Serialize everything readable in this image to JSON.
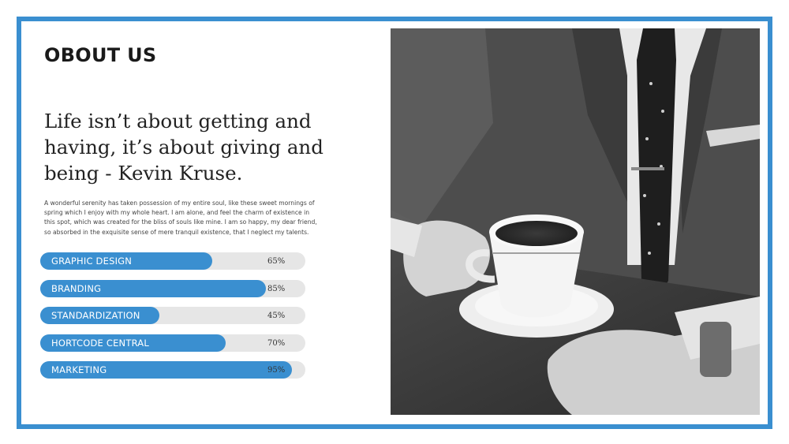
{
  "section": {
    "title": "OBOUT US",
    "quote": "Life isn’t about getting and having, it’s about giving and being - Kevin Kruse.",
    "description": "A wonderful serenity has taken possession of my entire soul, like these sweet mornings of spring which I enjoy with my whole heart. I am alone, and feel the charm of existence in this spot, which was created for the bliss of souls like mine. I am so happy, my dear friend, so absorbed in the exquisite sense of mere tranquil existence, that I neglect my talents."
  },
  "skills": [
    {
      "label": "GRAPHIC DESIGN",
      "value": 65,
      "display": "65%"
    },
    {
      "label": "BRANDING",
      "value": 85,
      "display": "85%"
    },
    {
      "label": "STANDARDIZATION",
      "value": 45,
      "display": "45%"
    },
    {
      "label": "HORTCODE CENTRAL",
      "value": 70,
      "display": "70%"
    },
    {
      "label": "MARKETING",
      "value": 95,
      "display": "95%"
    }
  ],
  "colors": {
    "accent": "#3a8fd0",
    "track": "#e6e6e6",
    "border": "#3a8fd0"
  },
  "image": {
    "icon": "coffee-cup-photo"
  }
}
